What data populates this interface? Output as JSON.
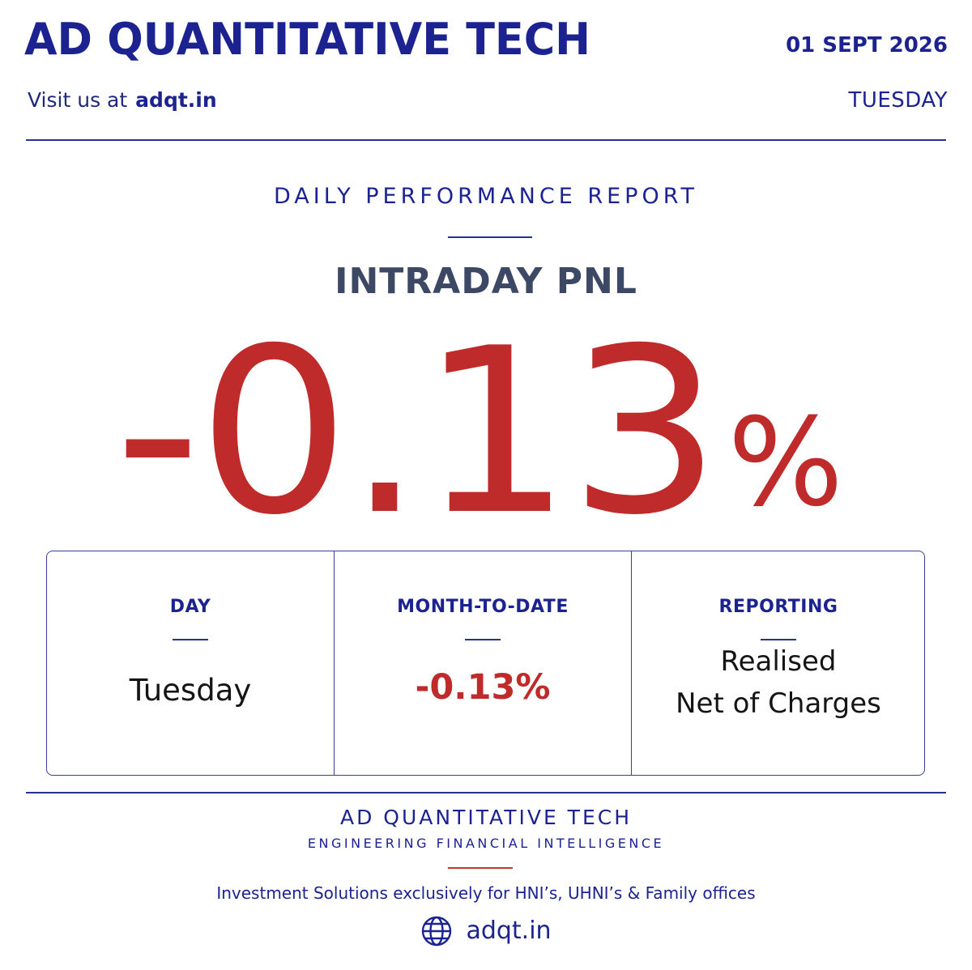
{
  "header": {
    "title": "AD QUANTITATIVE TECH",
    "visit_prefix": "Visit us at",
    "visit_url": "adqt.in",
    "date": "01 SEPT 2026",
    "day": "TUESDAY"
  },
  "report": {
    "title": "DAILY PERFORMANCE REPORT",
    "metric_label": "INTRADAY PNL",
    "metric_number": "-0.13",
    "metric_unit": "%"
  },
  "stats": {
    "day": {
      "label": "DAY",
      "value": "Tuesday"
    },
    "mtd": {
      "label": "MONTH-TO-DATE",
      "value": "-0.13%"
    },
    "reporting": {
      "label": "REPORTING",
      "line1": "Realised",
      "line2": "Net of Charges"
    }
  },
  "footer": {
    "brand": "AD QUANTITATIVE TECH",
    "tagline": "ENGINEERING FINANCIAL INTELLIGENCE",
    "description": "Investment Solutions exclusively for HNI’s, UHNI’s & Family offices",
    "url": "adqt.in",
    "url_icon": "globe-icon"
  },
  "colors": {
    "brand_navy": "#1c2391",
    "negative_red": "#bf2a2a",
    "label_slate": "#3d4865"
  }
}
